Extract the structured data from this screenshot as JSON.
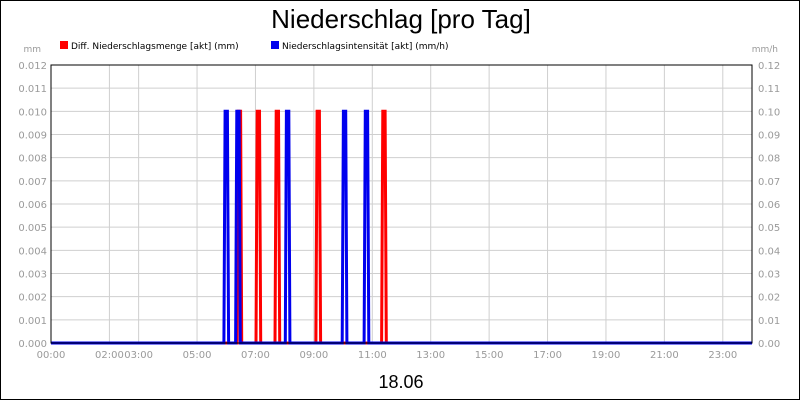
{
  "chart_data": {
    "type": "line",
    "title": "Niederschlag [pro Tag]",
    "subtitle": "18.06",
    "left_unit": "mm",
    "right_unit": "mm/h",
    "ylim_left": [
      0,
      0.012
    ],
    "ylim_right": [
      0,
      0.12
    ],
    "y_ticks_left": [
      "0.000",
      "0.001",
      "0.002",
      "0.003",
      "0.004",
      "0.005",
      "0.006",
      "0.007",
      "0.008",
      "0.009",
      "0.010",
      "0.011",
      "0.012"
    ],
    "y_ticks_right": [
      "0.00",
      "0.01",
      "0.02",
      "0.03",
      "0.04",
      "0.05",
      "0.06",
      "0.07",
      "0.08",
      "0.09",
      "0.10",
      "0.11",
      "0.12"
    ],
    "x_range_hours": [
      0,
      24
    ],
    "x_ticks": [
      {
        "hour": 0,
        "label": "00:00"
      },
      {
        "hour": 2,
        "label": "02:00"
      },
      {
        "hour": 3,
        "label": "03:00"
      },
      {
        "hour": 5,
        "label": "05:00"
      },
      {
        "hour": 7,
        "label": "07:00"
      },
      {
        "hour": 9,
        "label": "09:00"
      },
      {
        "hour": 11,
        "label": "11:00"
      },
      {
        "hour": 13,
        "label": "13:00"
      },
      {
        "hour": 15,
        "label": "15:00"
      },
      {
        "hour": 17,
        "label": "17:00"
      },
      {
        "hour": 19,
        "label": "19:00"
      },
      {
        "hour": 21,
        "label": "21:00"
      },
      {
        "hour": 23,
        "label": "23:00"
      }
    ],
    "grid": true,
    "legend_position": "top",
    "series": [
      {
        "name": "Diff. Niederschlagsmenge [akt] (mm)",
        "color": "#ff0000",
        "axis": "left",
        "spikes": [
          {
            "hour": 6.45,
            "value": 0.01
          },
          {
            "hour": 7.1,
            "value": 0.01
          },
          {
            "hour": 7.75,
            "value": 0.01
          },
          {
            "hour": 9.15,
            "value": 0.01
          },
          {
            "hour": 11.4,
            "value": 0.01
          }
        ]
      },
      {
        "name": "Niederschlagsintensität [akt] (mm/h)",
        "color": "#0000ee",
        "axis": "right",
        "spikes": [
          {
            "hour": 6.0,
            "value": 0.1
          },
          {
            "hour": 6.4,
            "value": 0.1
          },
          {
            "hour": 8.1,
            "value": 0.1
          },
          {
            "hour": 10.05,
            "value": 0.1
          },
          {
            "hour": 10.8,
            "value": 0.1
          }
        ]
      }
    ]
  }
}
